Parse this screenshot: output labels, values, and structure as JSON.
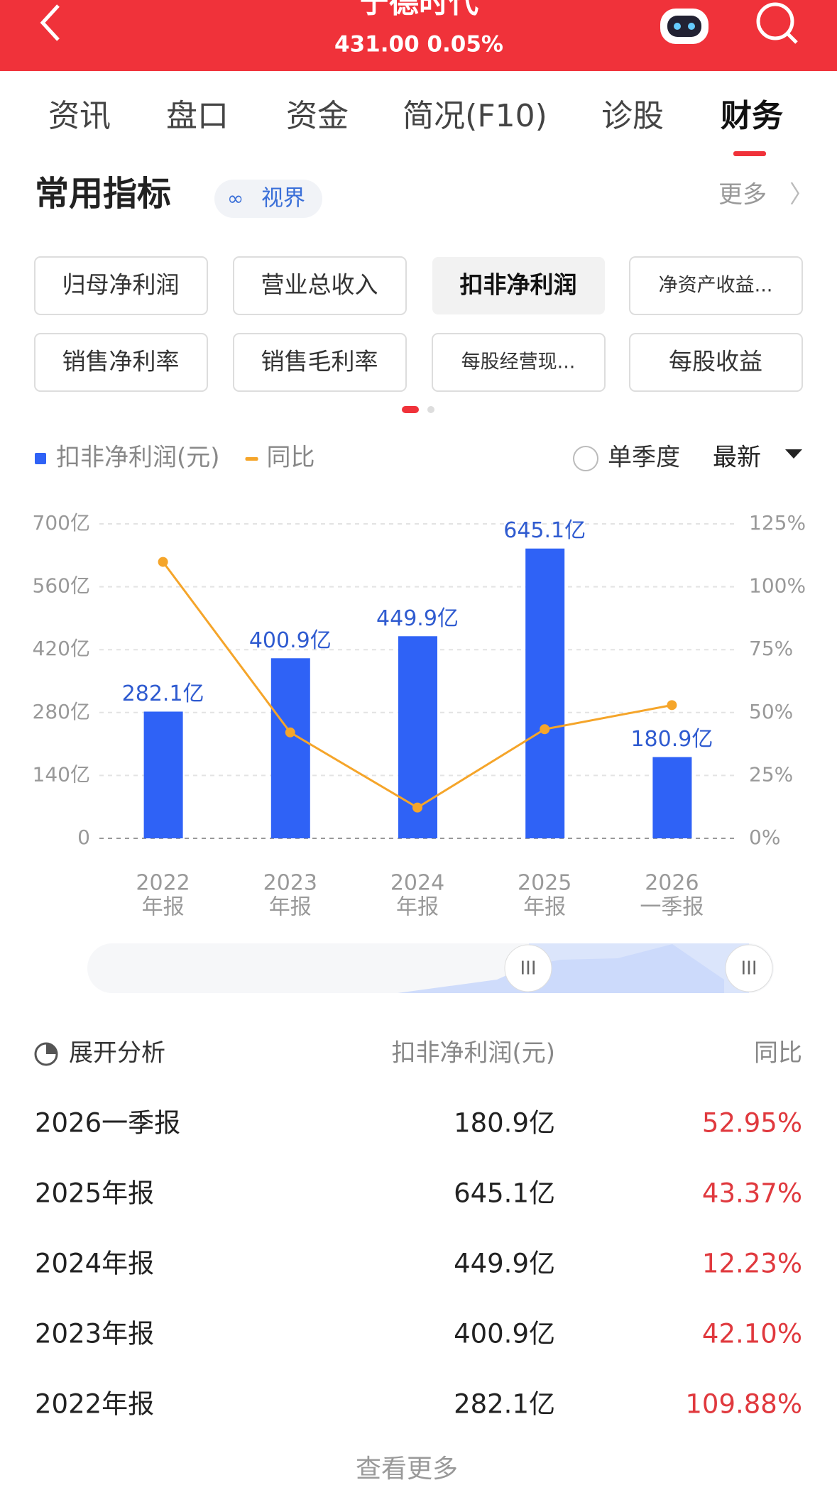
{
  "header": {
    "title": "宁德时代",
    "quote": "431.00 0.05%"
  },
  "tabs": [
    "资讯",
    "盘口",
    "资金",
    "简况(F10)",
    "诊股",
    "财务"
  ],
  "section": {
    "title": "常用指标",
    "badge": "视界",
    "more": "更多"
  },
  "chips": [
    "归母净利润",
    "营业总收入",
    "扣非净利润",
    "净资产收益...",
    "销售净利率",
    "销售毛利率",
    "每股经营现...",
    "每股收益"
  ],
  "chart_controls": {
    "single_quarter": "单季度",
    "period": "最新"
  },
  "chart_data": {
    "type": "bar",
    "categories": [
      [
        "2022",
        "年报"
      ],
      [
        "2023",
        "年报"
      ],
      [
        "2024",
        "年报"
      ],
      [
        "2025",
        "年报"
      ],
      [
        "2026",
        "一季报"
      ]
    ],
    "series": [
      {
        "name": "扣非净利润(元)",
        "color": "#2f62f6",
        "values": [
          282.1,
          400.9,
          449.9,
          645.1,
          180.9
        ],
        "value_labels": [
          "282.1亿",
          "400.9亿",
          "449.9亿",
          "645.1亿",
          "180.9亿"
        ]
      },
      {
        "name": "同比",
        "color": "#f5a52a",
        "axis": "y2",
        "values": [
          109.88,
          42.1,
          12.23,
          43.37,
          52.95
        ]
      }
    ],
    "ylim": [
      0,
      700
    ],
    "yticks": [
      0,
      {
        "value": 140,
        "label": "140亿"
      },
      {
        "value": 280,
        "label": "280亿"
      },
      {
        "value": 420,
        "label": "420亿"
      },
      {
        "value": 560,
        "label": "560亿"
      },
      {
        "value": 700,
        "label": "700亿"
      }
    ],
    "y2lim": [
      0,
      125
    ],
    "y2ticks": [
      {
        "value": 0,
        "label": "0%"
      },
      {
        "value": 25,
        "label": "25%"
      },
      {
        "value": 50,
        "label": "50%"
      },
      {
        "value": 75,
        "label": "75%"
      },
      {
        "value": 100,
        "label": "100%"
      },
      {
        "value": 125,
        "label": "125%"
      }
    ],
    "grid": true
  },
  "table": {
    "header": [
      "展开分析",
      "扣非净利润(元)",
      "同比"
    ],
    "rows": [
      [
        "2026一季报",
        "180.9亿",
        "52.95%"
      ],
      [
        "2025年报",
        "645.1亿",
        "43.37%"
      ],
      [
        "2024年报",
        "449.9亿",
        "12.23%"
      ],
      [
        "2023年报",
        "400.9亿",
        "42.10%"
      ],
      [
        "2022年报",
        "282.1亿",
        "109.88%"
      ]
    ]
  },
  "footer": "查看更多"
}
